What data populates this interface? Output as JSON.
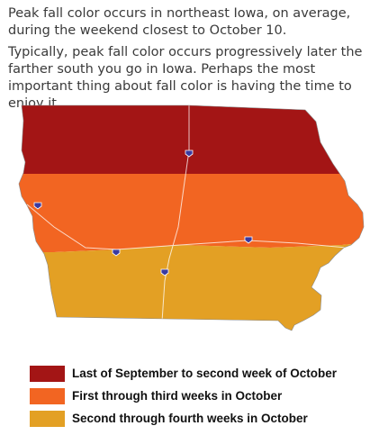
{
  "intro": {
    "paragraph1": "Peak fall color occurs in northeast Iowa, on average, during the weekend closest to October 10.",
    "paragraph2": "Typically, peak fall color occurs progressively later the farther south you go in Iowa. Perhaps the most important thing about fall color is having the time to enjoy it."
  },
  "map": {
    "regions": [
      {
        "id": "north",
        "color": "#a31515"
      },
      {
        "id": "central",
        "color": "#f26522"
      },
      {
        "id": "south",
        "color": "#e3a024"
      }
    ],
    "highway_shields": [
      "interstate-shield-icon",
      "interstate-shield-icon",
      "interstate-shield-icon",
      "interstate-shield-icon",
      "interstate-shield-icon"
    ]
  },
  "legend": [
    {
      "label": "Last of September to second week of October",
      "color": "#a31515"
    },
    {
      "label": "First through third weeks in October",
      "color": "#f26522"
    },
    {
      "label": "Second through fourth weeks in October",
      "color": "#e3a024"
    }
  ]
}
